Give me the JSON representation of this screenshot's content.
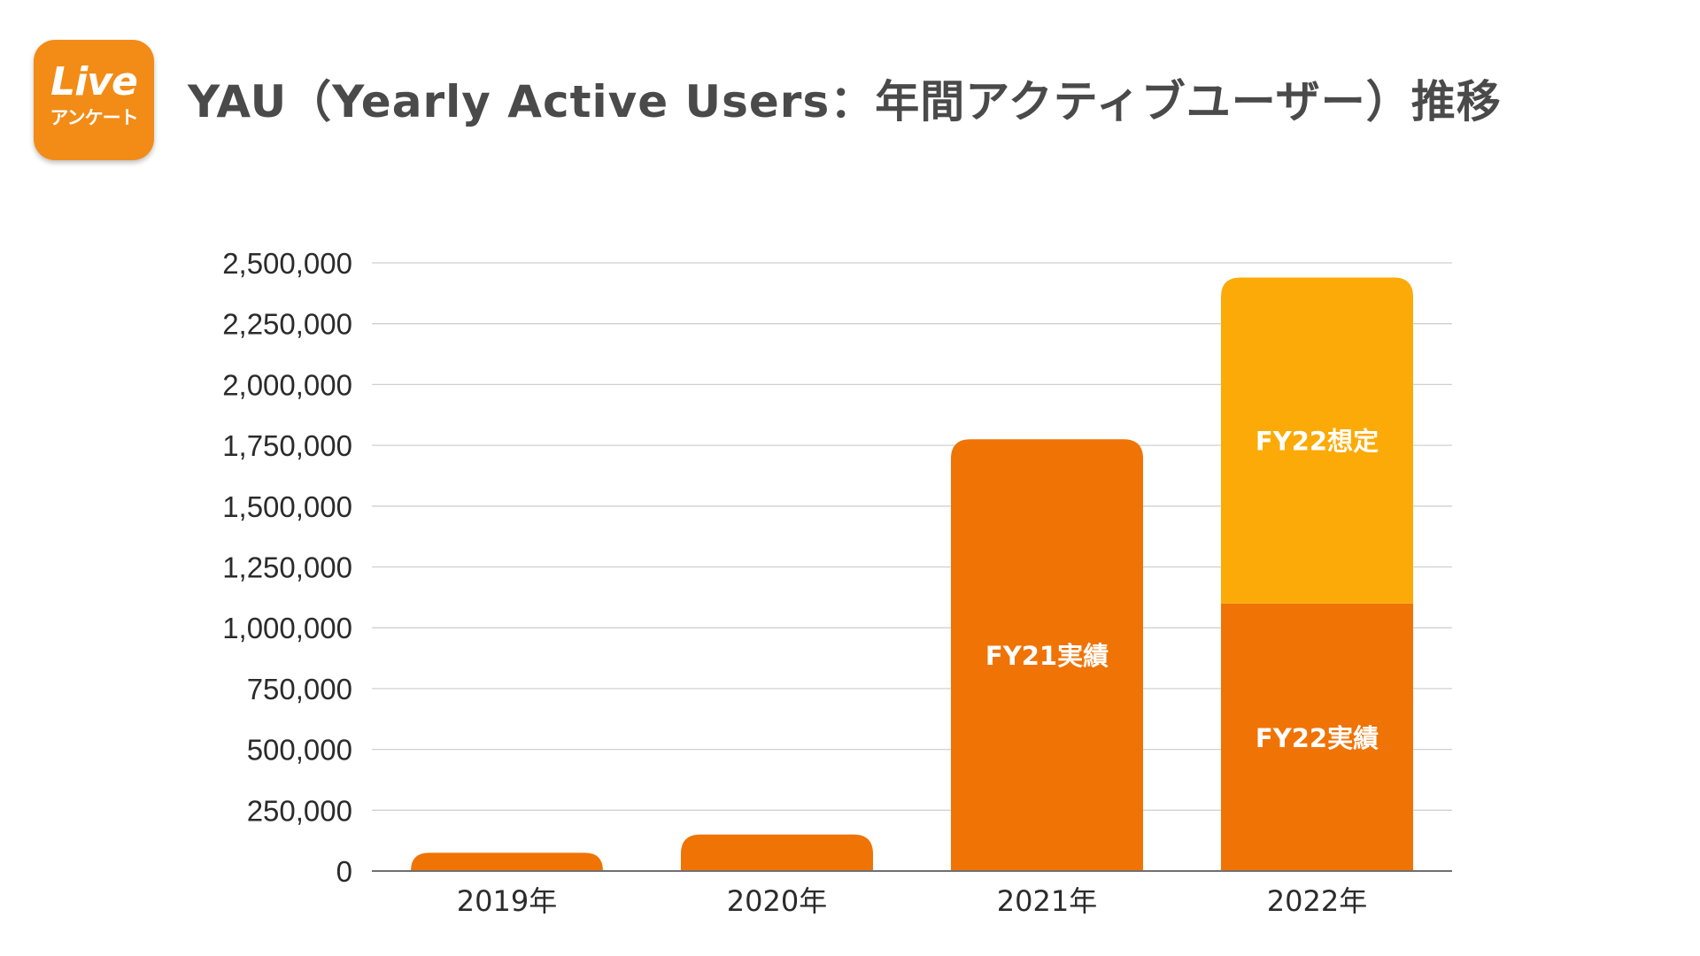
{
  "logo": {
    "main": "Live",
    "sub": "アンケート",
    "color": "#f28c16"
  },
  "title": "YAU（Yearly Active Users：年間アクティブユーザー）推移",
  "chart_data": {
    "type": "bar",
    "stacked": true,
    "categories": [
      "2019年",
      "2020年",
      "2021年",
      "2022年"
    ],
    "series": [
      {
        "values": [
          75000,
          150000,
          1775000,
          1100000
        ],
        "color": "#f07306",
        "segment_labels": [
          "",
          "",
          "FY21実績",
          "FY22実績"
        ]
      },
      {
        "values": [
          0,
          0,
          0,
          1340000
        ],
        "color": "#fbaa07",
        "segment_labels": [
          "",
          "",
          "",
          "FY22想定"
        ]
      }
    ],
    "ylim": [
      0,
      2500000
    ],
    "yticks": [
      0,
      250000,
      500000,
      750000,
      1000000,
      1250000,
      1500000,
      1750000,
      2000000,
      2250000,
      2500000
    ],
    "ytick_labels": [
      "0",
      "250,000",
      "500,000",
      "750,000",
      "1,000,000",
      "1,250,000",
      "1,500,000",
      "1,750,000",
      "2,000,000",
      "2,250,000",
      "2,500,000"
    ],
    "grid": true,
    "legend": "none"
  }
}
